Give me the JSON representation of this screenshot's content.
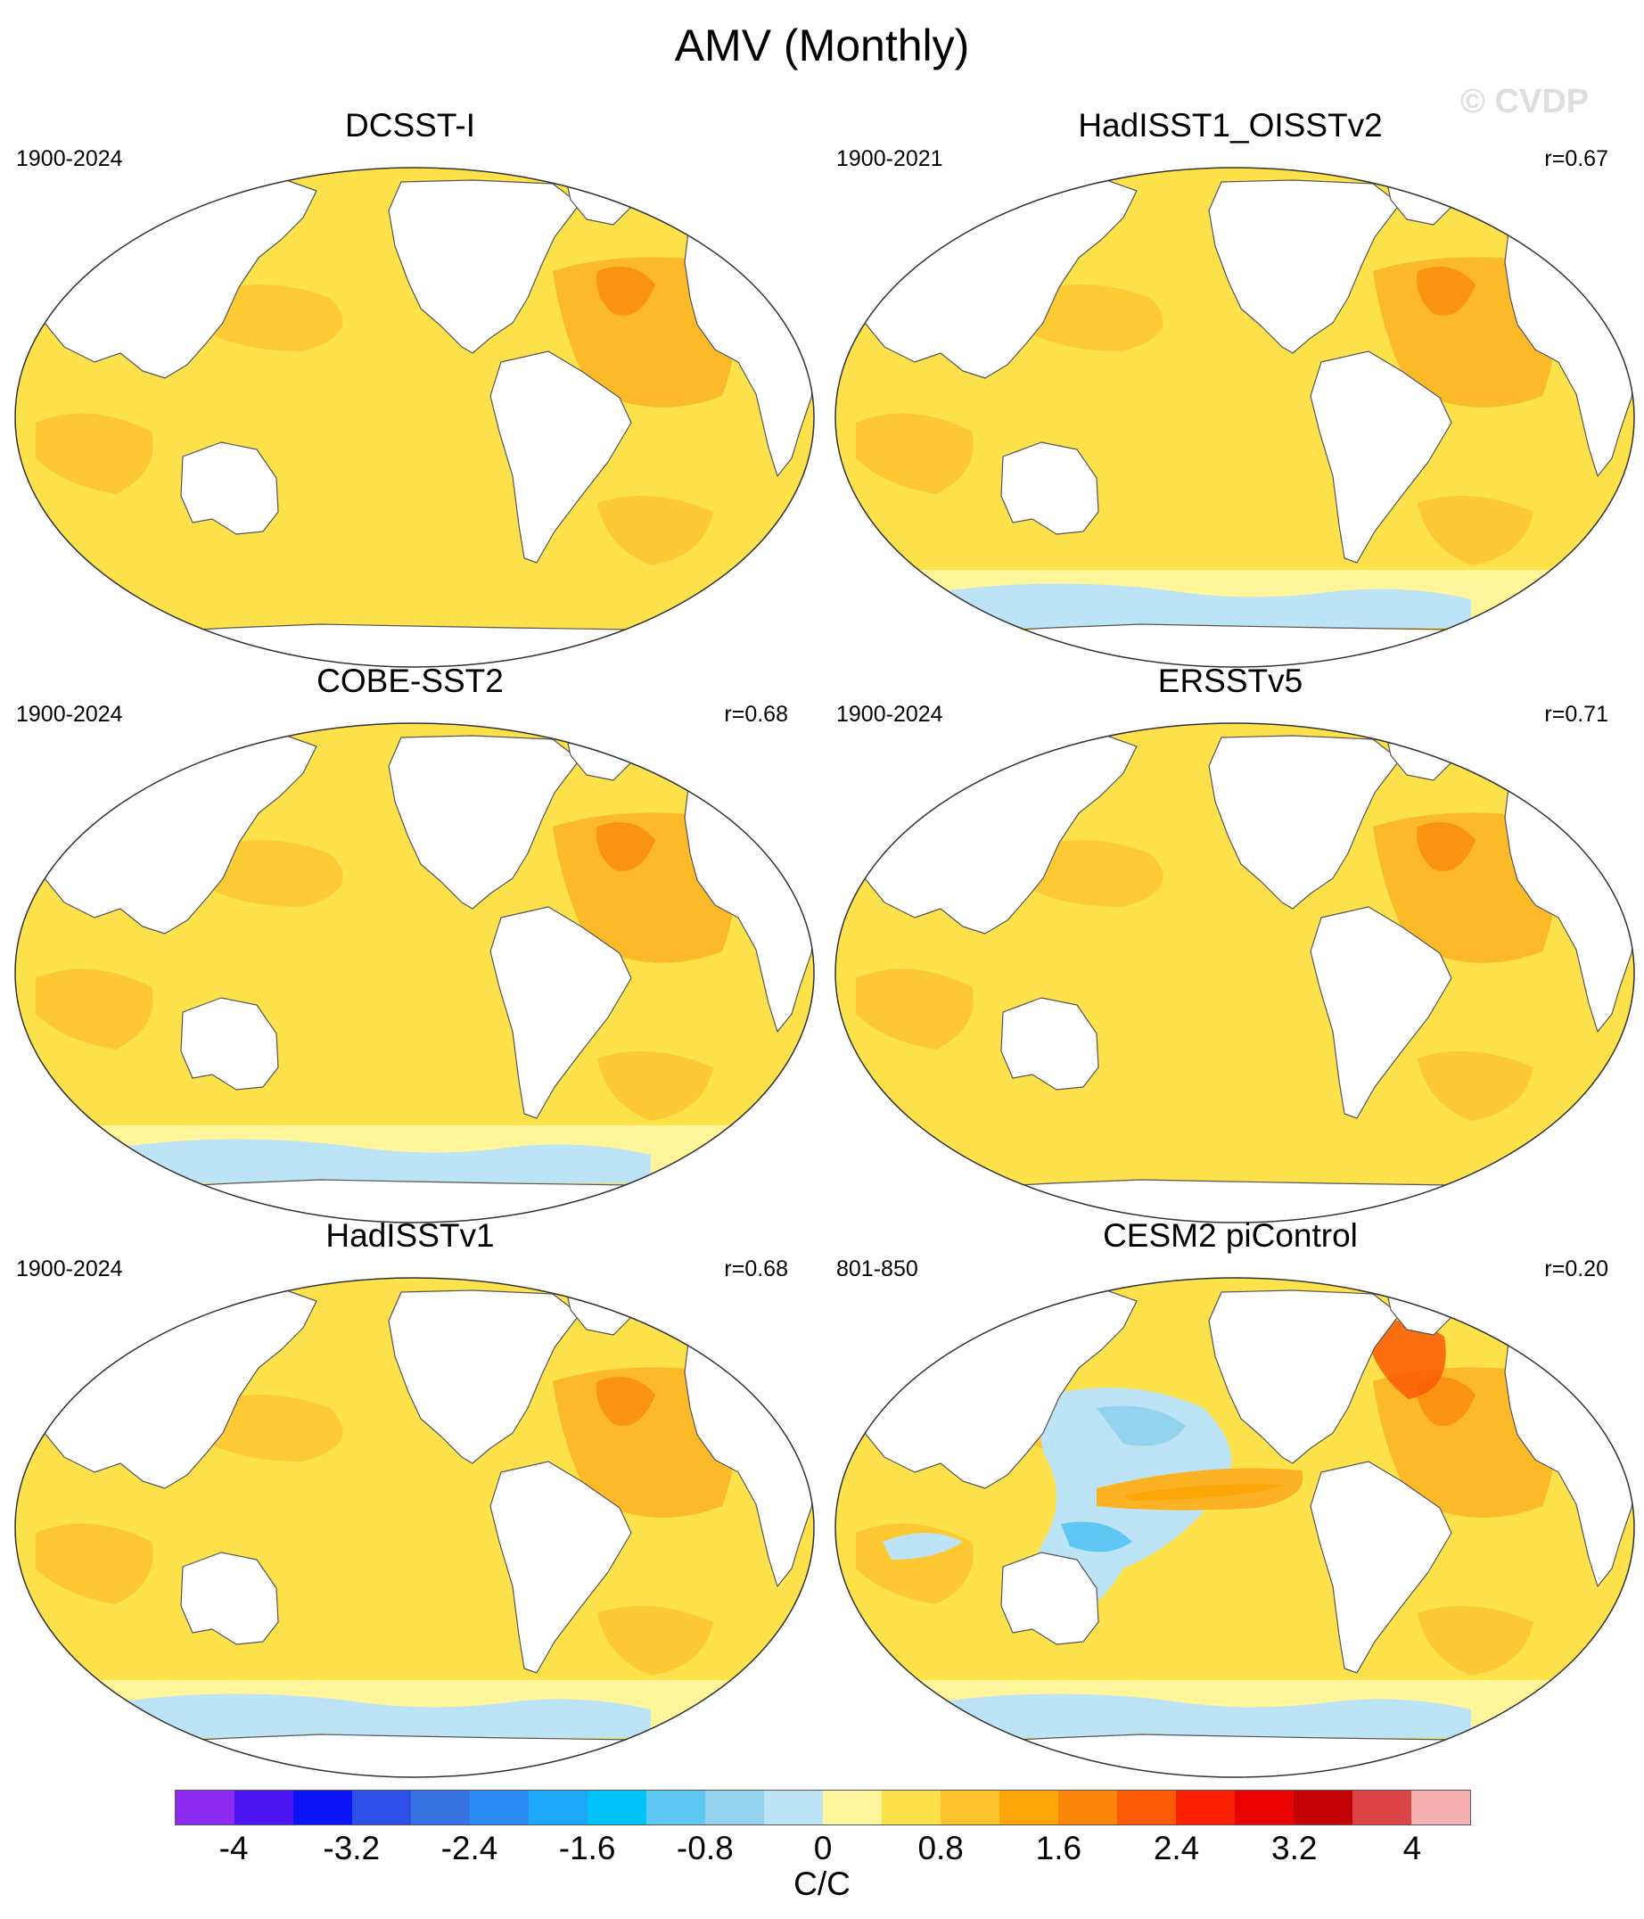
{
  "title": "AMV (Monthly)",
  "watermark": "© CVDP",
  "panels": [
    {
      "title": "DCSST-I",
      "period": "1900-2024",
      "corr": "",
      "style": "warm"
    },
    {
      "title": "HadISST1_OISSTv2",
      "period": "1900-2021",
      "corr": "r=0.67",
      "style": "warm-south-blue"
    },
    {
      "title": "COBE-SST2",
      "period": "1900-2024",
      "corr": "r=0.68",
      "style": "warm-south-blue"
    },
    {
      "title": "ERSSTv5",
      "period": "1900-2024",
      "corr": "r=0.71",
      "style": "warm"
    },
    {
      "title": "HadISSTv1",
      "period": "1900-2024",
      "corr": "r=0.68",
      "style": "warm-south-blue"
    },
    {
      "title": "CESM2 piControl",
      "period": "801-850",
      "corr": "r=0.20",
      "style": "pacific-blue"
    }
  ],
  "colorbar": {
    "colors": [
      "#8d2cf0",
      "#4b16f2",
      "#0d14f5",
      "#2e4fe6",
      "#3772e3",
      "#2b8cf6",
      "#1ca8f7",
      "#00c4f7",
      "#5ec8f2",
      "#94d3ee",
      "#bde3f6",
      "#fff59f",
      "#fde24b",
      "#fdc22c",
      "#fca609",
      "#fc8609",
      "#fb5a06",
      "#fa2002",
      "#e80202",
      "#c20303",
      "#db4446",
      "#f6b1b0"
    ],
    "ticks": [
      "-4",
      "-3.2",
      "-2.4",
      "-1.6",
      "-0.8",
      "0",
      "0.8",
      "1.6",
      "2.4",
      "3.2",
      "4"
    ],
    "unit": "C/C"
  }
}
